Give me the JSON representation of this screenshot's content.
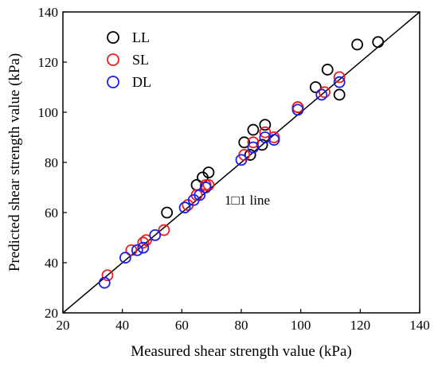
{
  "chart_data": {
    "type": "scatter",
    "title": "",
    "xlabel": "Measured shear strength value (kPa)",
    "ylabel": "Predicted shear strength value (kPa)",
    "xlim": [
      20,
      140
    ],
    "ylim": [
      20,
      140
    ],
    "xticks": [
      20,
      40,
      60,
      80,
      100,
      120,
      140
    ],
    "yticks": [
      20,
      40,
      60,
      80,
      100,
      120,
      140
    ],
    "grid": false,
    "legend_position": "top-left",
    "marker": "open-circle",
    "reference_line": {
      "label": "1□1 line",
      "from": [
        20,
        20
      ],
      "to": [
        140,
        140
      ]
    },
    "series": [
      {
        "name": "LL",
        "color": "#000000",
        "points": [
          [
            55,
            60
          ],
          [
            65,
            71
          ],
          [
            67,
            74
          ],
          [
            69,
            76
          ],
          [
            81,
            88
          ],
          [
            83,
            83
          ],
          [
            84,
            93
          ],
          [
            87,
            87
          ],
          [
            88,
            95
          ],
          [
            99,
            102
          ],
          [
            105,
            110
          ],
          [
            109,
            117
          ],
          [
            113,
            107
          ],
          [
            119,
            127
          ],
          [
            126,
            128
          ]
        ]
      },
      {
        "name": "SL",
        "color": "#ee1c1c",
        "points": [
          [
            35,
            35
          ],
          [
            43,
            45
          ],
          [
            47,
            48
          ],
          [
            48,
            49
          ],
          [
            54,
            53
          ],
          [
            62,
            63
          ],
          [
            65,
            67
          ],
          [
            68,
            71
          ],
          [
            69,
            71
          ],
          [
            81,
            83
          ],
          [
            84,
            88
          ],
          [
            88,
            92
          ],
          [
            91,
            90
          ],
          [
            99,
            102
          ],
          [
            108,
            108
          ],
          [
            113,
            114
          ]
        ]
      },
      {
        "name": "DL",
        "color": "#1c1cee",
        "points": [
          [
            34,
            32
          ],
          [
            41,
            42
          ],
          [
            45,
            45
          ],
          [
            47,
            46
          ],
          [
            51,
            51
          ],
          [
            61,
            62
          ],
          [
            64,
            65
          ],
          [
            66,
            67
          ],
          [
            68,
            70
          ],
          [
            80,
            81
          ],
          [
            84,
            86
          ],
          [
            88,
            90
          ],
          [
            91,
            89
          ],
          [
            99,
            101
          ],
          [
            107,
            107
          ],
          [
            113,
            112
          ]
        ]
      }
    ]
  }
}
